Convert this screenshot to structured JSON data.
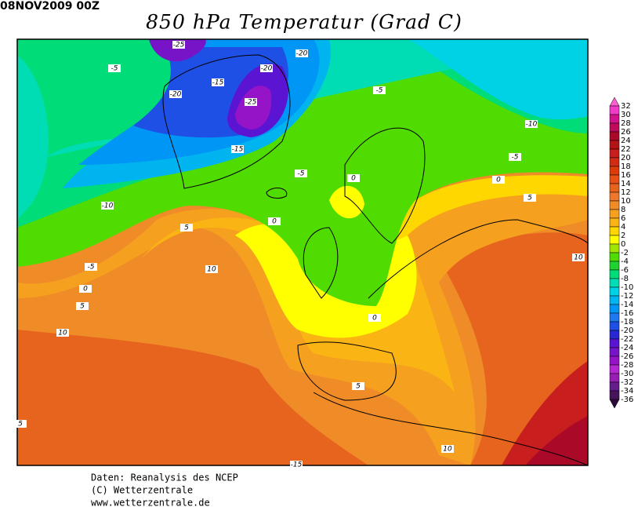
{
  "timestamp": "08NOV2009 00Z",
  "title": "850 hPa Temperatur (Grad C)",
  "credits": [
    "Daten: Reanalysis des NCEP",
    "(C) Wetterzentrale",
    "www.wetterzentrale.de"
  ],
  "colorbar": {
    "levels": [
      32,
      30,
      28,
      26,
      24,
      22,
      20,
      18,
      16,
      14,
      12,
      10,
      8,
      6,
      4,
      2,
      0,
      -2,
      -4,
      -6,
      -8,
      -10,
      -12,
      -14,
      -16,
      -18,
      -20,
      -22,
      -24,
      -26,
      -28,
      -30,
      -32,
      -34,
      -36
    ],
    "colors": [
      "#ff5fd2",
      "#f03cc8",
      "#d2148c",
      "#be0a5a",
      "#aa0a28",
      "#b41414",
      "#c81e1e",
      "#d22d14",
      "#dc3c0a",
      "#e65014",
      "#e6641e",
      "#f0782d",
      "#f08c28",
      "#f5a01e",
      "#fab414",
      "#ffd700",
      "#ffff00",
      "#a0e600",
      "#50dc00",
      "#1ed232",
      "#00dc78",
      "#00dcb4",
      "#00d2e6",
      "#00b4f0",
      "#0096f5",
      "#1e78f0",
      "#1e50e6",
      "#2828d2",
      "#5a14d2",
      "#7814c8",
      "#9614c8",
      "#b428d2",
      "#961eb4",
      "#641e8c",
      "#46145a",
      "#2d0a3c"
    ]
  },
  "contour_labels": [
    -25,
    -20,
    -5,
    -15,
    -20,
    -20,
    -25,
    -5,
    -10,
    -15,
    -5,
    -5,
    0,
    0,
    5,
    -10,
    0,
    5,
    -5,
    10,
    0,
    5,
    10,
    10,
    0,
    5,
    5,
    10,
    -15
  ]
}
